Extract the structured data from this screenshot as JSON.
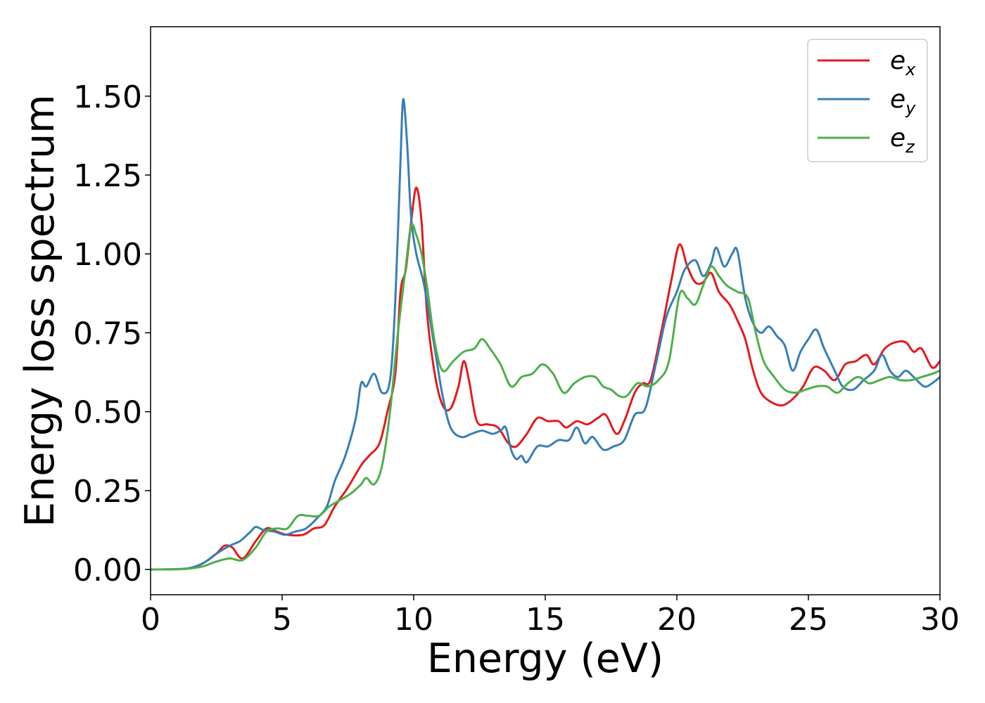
{
  "chart_data": {
    "type": "line",
    "title": "",
    "xlabel": "Energy (eV)",
    "ylabel": "Energy loss spectrum",
    "xlim": [
      0,
      30
    ],
    "ylim": [
      -0.08,
      1.72
    ],
    "xticks": [
      0,
      5,
      10,
      15,
      20,
      25,
      30
    ],
    "xtick_labels": [
      "0",
      "5",
      "10",
      "15",
      "20",
      "25",
      "30"
    ],
    "yticks": [
      0,
      0.25,
      0.5,
      0.75,
      1.0,
      1.25,
      1.5
    ],
    "ytick_labels": [
      "0.00",
      "0.25",
      "0.50",
      "0.75",
      "1.00",
      "1.25",
      "1.50"
    ],
    "grid": false,
    "legend_position": "top-right",
    "series": [
      {
        "name": "e",
        "subscript": "x",
        "color": "#e41a1c",
        "points": [
          [
            0,
            0
          ],
          [
            1,
            0.001
          ],
          [
            1.5,
            0.004
          ],
          [
            2,
            0.02
          ],
          [
            2.5,
            0.05
          ],
          [
            2.8,
            0.075
          ],
          [
            3.1,
            0.07
          ],
          [
            3.5,
            0.035
          ],
          [
            4,
            0.09
          ],
          [
            4.4,
            0.13
          ],
          [
            4.8,
            0.12
          ],
          [
            5.2,
            0.11
          ],
          [
            5.8,
            0.11
          ],
          [
            6.2,
            0.13
          ],
          [
            6.6,
            0.14
          ],
          [
            7,
            0.2
          ],
          [
            7.5,
            0.26
          ],
          [
            8,
            0.33
          ],
          [
            8.3,
            0.36
          ],
          [
            8.7,
            0.4
          ],
          [
            9,
            0.5
          ],
          [
            9.3,
            0.62
          ],
          [
            9.5,
            0.88
          ],
          [
            9.7,
            0.95
          ],
          [
            9.9,
            1.1
          ],
          [
            10.1,
            1.21
          ],
          [
            10.3,
            1.1
          ],
          [
            10.5,
            0.82
          ],
          [
            10.8,
            0.62
          ],
          [
            11.1,
            0.52
          ],
          [
            11.4,
            0.51
          ],
          [
            11.7,
            0.58
          ],
          [
            11.9,
            0.66
          ],
          [
            12.1,
            0.6
          ],
          [
            12.4,
            0.47
          ],
          [
            12.8,
            0.46
          ],
          [
            13.2,
            0.45
          ],
          [
            13.6,
            0.4
          ],
          [
            13.9,
            0.39
          ],
          [
            14.3,
            0.43
          ],
          [
            14.7,
            0.48
          ],
          [
            15.1,
            0.47
          ],
          [
            15.5,
            0.47
          ],
          [
            15.8,
            0.45
          ],
          [
            16.2,
            0.47
          ],
          [
            16.6,
            0.46
          ],
          [
            17,
            0.48
          ],
          [
            17.3,
            0.49
          ],
          [
            17.7,
            0.43
          ],
          [
            18,
            0.47
          ],
          [
            18.4,
            0.56
          ],
          [
            18.7,
            0.59
          ],
          [
            19,
            0.6
          ],
          [
            19.4,
            0.75
          ],
          [
            19.8,
            0.92
          ],
          [
            20.1,
            1.03
          ],
          [
            20.4,
            0.96
          ],
          [
            20.7,
            0.91
          ],
          [
            21,
            0.91
          ],
          [
            21.3,
            0.94
          ],
          [
            21.6,
            0.88
          ],
          [
            22,
            0.84
          ],
          [
            22.3,
            0.79
          ],
          [
            22.6,
            0.73
          ],
          [
            22.9,
            0.63
          ],
          [
            23.2,
            0.56
          ],
          [
            23.6,
            0.53
          ],
          [
            24,
            0.52
          ],
          [
            24.4,
            0.54
          ],
          [
            24.8,
            0.58
          ],
          [
            25.2,
            0.64
          ],
          [
            25.6,
            0.63
          ],
          [
            26,
            0.6
          ],
          [
            26.4,
            0.65
          ],
          [
            26.8,
            0.66
          ],
          [
            27.2,
            0.68
          ],
          [
            27.5,
            0.65
          ],
          [
            27.9,
            0.7
          ],
          [
            28.3,
            0.72
          ],
          [
            28.7,
            0.72
          ],
          [
            29,
            0.69
          ],
          [
            29.3,
            0.7
          ],
          [
            29.7,
            0.64
          ],
          [
            30,
            0.66
          ]
        ]
      },
      {
        "name": "e",
        "subscript": "y",
        "color": "#377eb8",
        "points": [
          [
            0,
            0
          ],
          [
            1,
            0.001
          ],
          [
            1.5,
            0.005
          ],
          [
            2,
            0.02
          ],
          [
            2.5,
            0.05
          ],
          [
            3,
            0.075
          ],
          [
            3.4,
            0.09
          ],
          [
            3.8,
            0.12
          ],
          [
            4,
            0.135
          ],
          [
            4.3,
            0.125
          ],
          [
            4.7,
            0.12
          ],
          [
            5.1,
            0.11
          ],
          [
            5.5,
            0.12
          ],
          [
            5.9,
            0.13
          ],
          [
            6.3,
            0.16
          ],
          [
            6.7,
            0.2
          ],
          [
            7,
            0.28
          ],
          [
            7.4,
            0.36
          ],
          [
            7.8,
            0.48
          ],
          [
            8,
            0.59
          ],
          [
            8.2,
            0.58
          ],
          [
            8.5,
            0.62
          ],
          [
            8.8,
            0.56
          ],
          [
            9.1,
            0.6
          ],
          [
            9.3,
            0.85
          ],
          [
            9.5,
            1.3
          ],
          [
            9.6,
            1.49
          ],
          [
            9.75,
            1.35
          ],
          [
            9.9,
            1.12
          ],
          [
            10.1,
            1.0
          ],
          [
            10.4,
            0.9
          ],
          [
            10.8,
            0.7
          ],
          [
            11.1,
            0.55
          ],
          [
            11.4,
            0.45
          ],
          [
            11.8,
            0.42
          ],
          [
            12.2,
            0.43
          ],
          [
            12.6,
            0.44
          ],
          [
            13,
            0.43
          ],
          [
            13.3,
            0.44
          ],
          [
            13.5,
            0.45
          ],
          [
            13.7,
            0.38
          ],
          [
            13.9,
            0.35
          ],
          [
            14.1,
            0.36
          ],
          [
            14.3,
            0.34
          ],
          [
            14.7,
            0.39
          ],
          [
            15.1,
            0.39
          ],
          [
            15.5,
            0.41
          ],
          [
            15.9,
            0.41
          ],
          [
            16.2,
            0.45
          ],
          [
            16.5,
            0.4
          ],
          [
            16.8,
            0.42
          ],
          [
            17.2,
            0.38
          ],
          [
            17.6,
            0.39
          ],
          [
            18,
            0.41
          ],
          [
            18.4,
            0.49
          ],
          [
            18.8,
            0.51
          ],
          [
            19.2,
            0.65
          ],
          [
            19.6,
            0.8
          ],
          [
            20,
            0.88
          ],
          [
            20.3,
            0.95
          ],
          [
            20.7,
            0.98
          ],
          [
            21,
            0.93
          ],
          [
            21.3,
            0.97
          ],
          [
            21.5,
            1.02
          ],
          [
            21.8,
            0.96
          ],
          [
            22.1,
            1.0
          ],
          [
            22.3,
            1.01
          ],
          [
            22.6,
            0.86
          ],
          [
            22.9,
            0.78
          ],
          [
            23.2,
            0.75
          ],
          [
            23.5,
            0.77
          ],
          [
            23.8,
            0.74
          ],
          [
            24.1,
            0.71
          ],
          [
            24.4,
            0.63
          ],
          [
            24.7,
            0.69
          ],
          [
            25,
            0.73
          ],
          [
            25.3,
            0.76
          ],
          [
            25.6,
            0.7
          ],
          [
            26,
            0.63
          ],
          [
            26.3,
            0.58
          ],
          [
            26.7,
            0.57
          ],
          [
            27.1,
            0.6
          ],
          [
            27.5,
            0.63
          ],
          [
            27.8,
            0.68
          ],
          [
            28.1,
            0.63
          ],
          [
            28.4,
            0.61
          ],
          [
            28.7,
            0.63
          ],
          [
            29,
            0.61
          ],
          [
            29.4,
            0.58
          ],
          [
            29.7,
            0.59
          ],
          [
            30,
            0.61
          ]
        ]
      },
      {
        "name": "e",
        "subscript": "z",
        "color": "#4daf4a",
        "points": [
          [
            0,
            0
          ],
          [
            1,
            0.001
          ],
          [
            1.5,
            0.003
          ],
          [
            2,
            0.01
          ],
          [
            2.5,
            0.025
          ],
          [
            3,
            0.035
          ],
          [
            3.5,
            0.03
          ],
          [
            4,
            0.07
          ],
          [
            4.4,
            0.12
          ],
          [
            4.8,
            0.13
          ],
          [
            5.2,
            0.13
          ],
          [
            5.6,
            0.17
          ],
          [
            6,
            0.17
          ],
          [
            6.4,
            0.17
          ],
          [
            6.8,
            0.2
          ],
          [
            7.2,
            0.22
          ],
          [
            7.6,
            0.24
          ],
          [
            8,
            0.27
          ],
          [
            8.2,
            0.29
          ],
          [
            8.5,
            0.27
          ],
          [
            8.8,
            0.33
          ],
          [
            9.1,
            0.5
          ],
          [
            9.4,
            0.75
          ],
          [
            9.7,
            0.96
          ],
          [
            9.9,
            1.09
          ],
          [
            10.1,
            1.06
          ],
          [
            10.3,
            1.0
          ],
          [
            10.5,
            0.9
          ],
          [
            10.8,
            0.72
          ],
          [
            11.1,
            0.63
          ],
          [
            11.5,
            0.66
          ],
          [
            11.9,
            0.69
          ],
          [
            12.3,
            0.7
          ],
          [
            12.6,
            0.73
          ],
          [
            12.9,
            0.7
          ],
          [
            13.3,
            0.65
          ],
          [
            13.7,
            0.58
          ],
          [
            14.1,
            0.61
          ],
          [
            14.5,
            0.62
          ],
          [
            14.9,
            0.65
          ],
          [
            15.3,
            0.62
          ],
          [
            15.7,
            0.56
          ],
          [
            16.1,
            0.59
          ],
          [
            16.5,
            0.61
          ],
          [
            16.9,
            0.61
          ],
          [
            17.2,
            0.58
          ],
          [
            17.5,
            0.57
          ],
          [
            17.8,
            0.55
          ],
          [
            18.1,
            0.55
          ],
          [
            18.5,
            0.59
          ],
          [
            18.9,
            0.58
          ],
          [
            19.3,
            0.6
          ],
          [
            19.7,
            0.66
          ],
          [
            20.1,
            0.87
          ],
          [
            20.4,
            0.86
          ],
          [
            20.7,
            0.84
          ],
          [
            21,
            0.9
          ],
          [
            21.3,
            0.96
          ],
          [
            21.6,
            0.93
          ],
          [
            21.9,
            0.9
          ],
          [
            22.3,
            0.88
          ],
          [
            22.7,
            0.86
          ],
          [
            23,
            0.75
          ],
          [
            23.3,
            0.66
          ],
          [
            23.7,
            0.61
          ],
          [
            24.1,
            0.57
          ],
          [
            24.5,
            0.56
          ],
          [
            24.9,
            0.57
          ],
          [
            25.3,
            0.58
          ],
          [
            25.7,
            0.58
          ],
          [
            26.1,
            0.56
          ],
          [
            26.5,
            0.59
          ],
          [
            26.9,
            0.61
          ],
          [
            27.3,
            0.59
          ],
          [
            27.7,
            0.6
          ],
          [
            28.1,
            0.61
          ],
          [
            28.5,
            0.6
          ],
          [
            28.9,
            0.6
          ],
          [
            29.3,
            0.61
          ],
          [
            29.7,
            0.62
          ],
          [
            30,
            0.63
          ]
        ]
      }
    ]
  }
}
